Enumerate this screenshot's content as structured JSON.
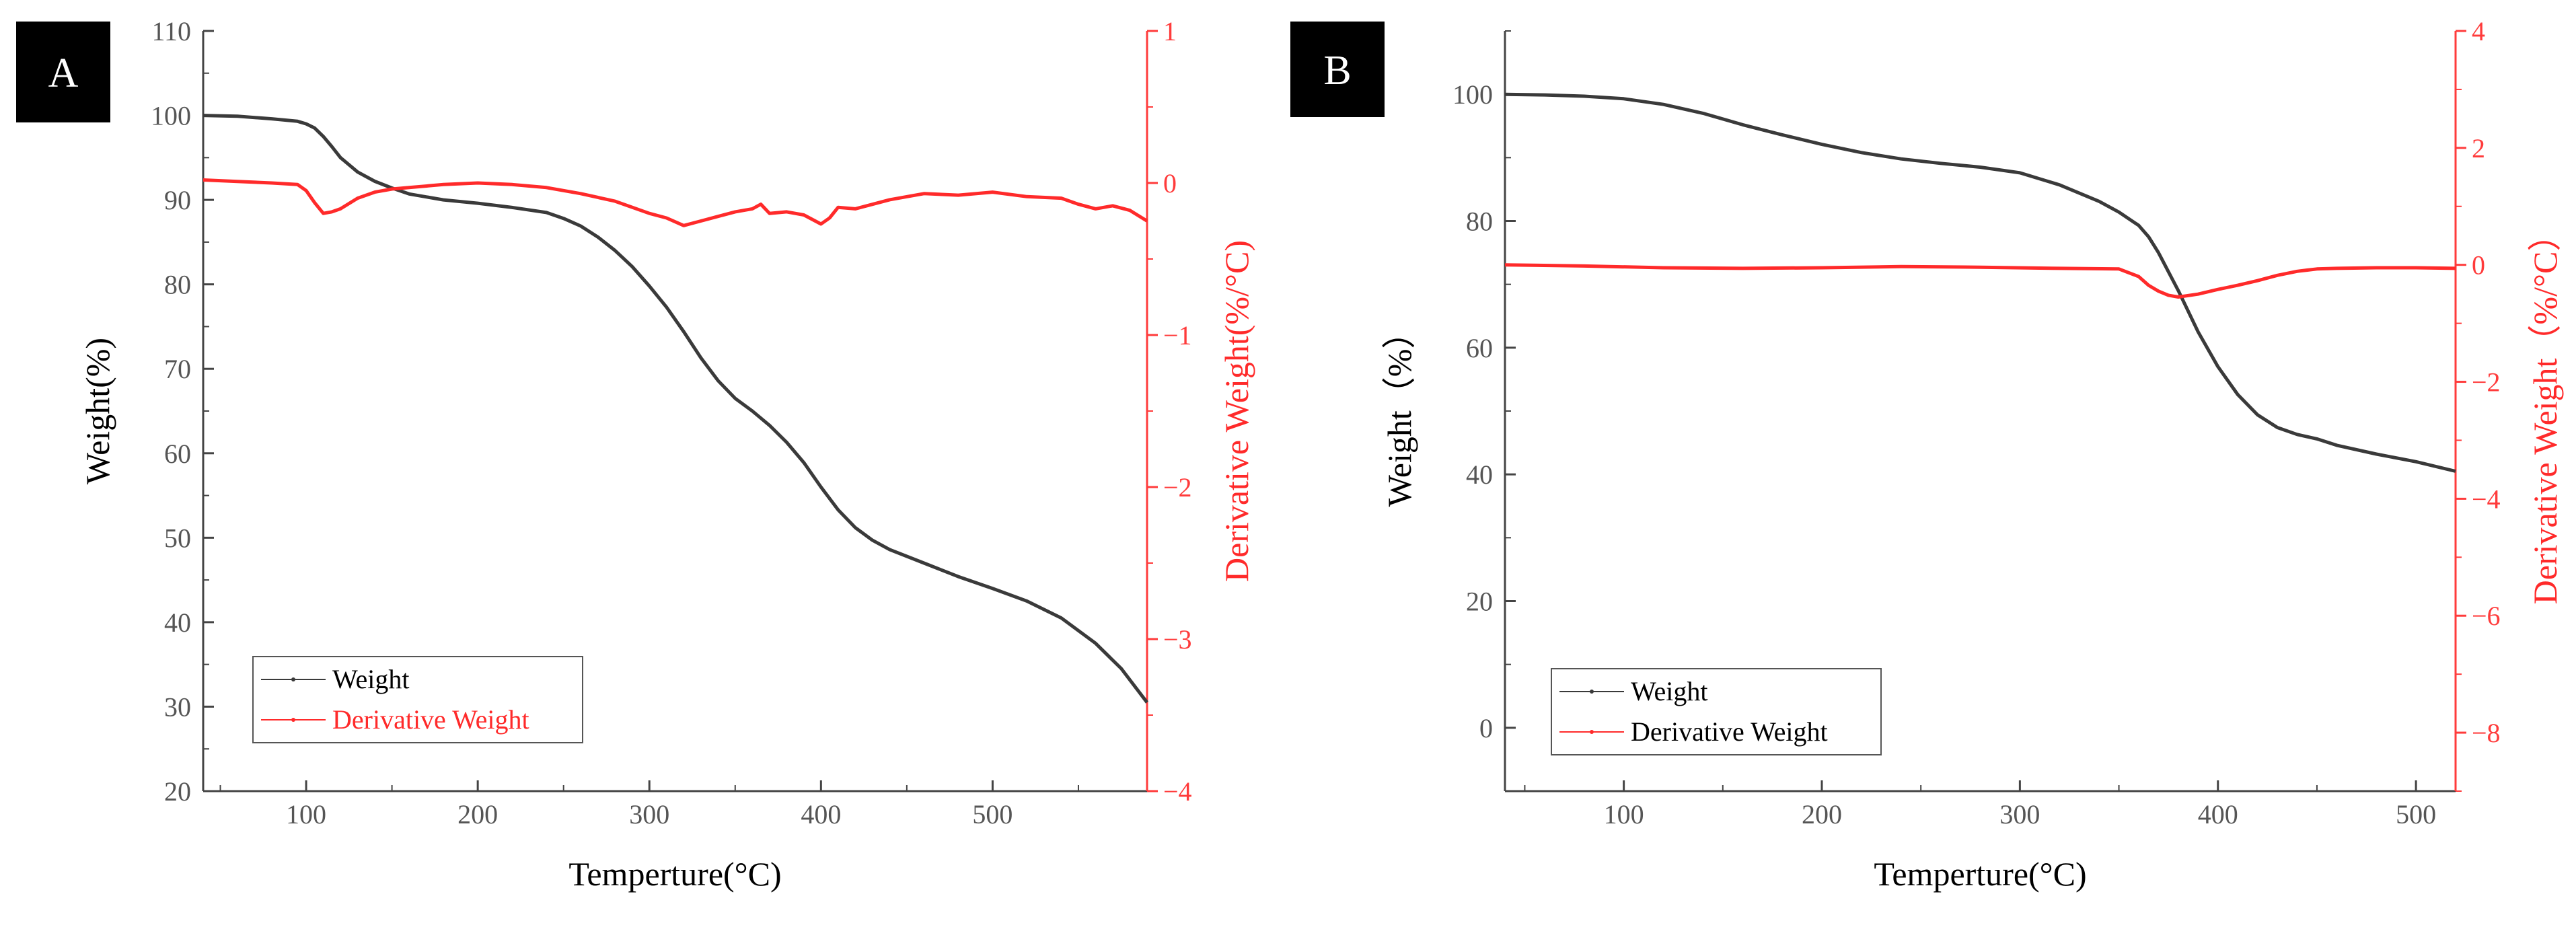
{
  "colors": {
    "weight": "#3a3a3a",
    "derivative": "#ff2a2a",
    "axis_right": "#ff3b3b",
    "label_bg": "#000000"
  },
  "chart_data": [
    {
      "panel": "A",
      "type": "line",
      "xlabel": "Temperture(°C)",
      "ylabel": "Weight(%)",
      "y2label": "Derivative Weight(%/°C)",
      "xlim": [
        40,
        590
      ],
      "ylim": [
        20,
        110
      ],
      "y2lim": [
        -4,
        1
      ],
      "xticks": [
        100,
        200,
        300,
        400,
        500
      ],
      "yticks": [
        20,
        30,
        40,
        50,
        60,
        70,
        80,
        90,
        100,
        110
      ],
      "y2ticks": [
        -4,
        -3,
        -2,
        -1,
        0,
        1
      ],
      "legend": {
        "position": "bottom-left",
        "entries": [
          "Weight",
          "Derivative Weight"
        ]
      },
      "series": [
        {
          "name": "Weight",
          "axis": "left",
          "x": [
            40,
            60,
            80,
            95,
            100,
            105,
            110,
            115,
            120,
            130,
            140,
            150,
            160,
            180,
            200,
            220,
            240,
            250,
            260,
            270,
            280,
            290,
            300,
            310,
            320,
            330,
            340,
            350,
            360,
            370,
            380,
            390,
            400,
            410,
            420,
            430,
            440,
            460,
            480,
            500,
            520,
            540,
            560,
            575,
            590
          ],
          "y": [
            100,
            99.9,
            99.6,
            99.3,
            99,
            98.5,
            97.5,
            96.3,
            95,
            93.3,
            92.2,
            91.4,
            90.7,
            90,
            89.6,
            89.1,
            88.5,
            87.8,
            86.9,
            85.6,
            84,
            82.1,
            79.8,
            77.3,
            74.4,
            71.3,
            68.6,
            66.5,
            65,
            63.3,
            61.3,
            58.9,
            56,
            53.3,
            51.2,
            49.7,
            48.6,
            47,
            45.4,
            44,
            42.5,
            40.5,
            37.5,
            34.5,
            30.5
          ]
        },
        {
          "name": "Derivative Weight",
          "axis": "right",
          "x": [
            40,
            60,
            80,
            95,
            100,
            105,
            110,
            115,
            120,
            130,
            140,
            150,
            160,
            180,
            200,
            220,
            240,
            260,
            280,
            300,
            310,
            320,
            330,
            340,
            350,
            360,
            365,
            370,
            380,
            390,
            400,
            405,
            410,
            420,
            440,
            460,
            480,
            500,
            520,
            540,
            550,
            560,
            570,
            580,
            590
          ],
          "y": [
            0.02,
            0.01,
            0.0,
            -0.01,
            -0.05,
            -0.13,
            -0.2,
            -0.19,
            -0.17,
            -0.1,
            -0.06,
            -0.04,
            -0.03,
            -0.01,
            0.0,
            -0.01,
            -0.03,
            -0.07,
            -0.12,
            -0.2,
            -0.23,
            -0.28,
            -0.25,
            -0.22,
            -0.19,
            -0.17,
            -0.14,
            -0.2,
            -0.19,
            -0.21,
            -0.27,
            -0.23,
            -0.16,
            -0.17,
            -0.11,
            -0.07,
            -0.08,
            -0.06,
            -0.09,
            -0.1,
            -0.14,
            -0.17,
            -0.15,
            -0.18,
            -0.25
          ]
        }
      ]
    },
    {
      "panel": "B",
      "type": "line",
      "xlabel": "Temperture(°C)",
      "ylabel": "Weight（%）",
      "y2label": "Derivative Weight（%/°C）",
      "xlim": [
        40,
        520
      ],
      "ylim": [
        -10,
        110
      ],
      "y2lim": [
        -9,
        4
      ],
      "xticks": [
        100,
        200,
        300,
        400,
        500
      ],
      "yticks": [
        0,
        20,
        40,
        60,
        80,
        100
      ],
      "y2ticks": [
        -8,
        -6,
        -4,
        -2,
        0,
        2,
        4
      ],
      "legend": {
        "position": "bottom-left",
        "entries": [
          "Weight",
          "Derivative Weight"
        ]
      },
      "series": [
        {
          "name": "Weight",
          "axis": "left",
          "x": [
            40,
            60,
            80,
            100,
            120,
            140,
            160,
            180,
            200,
            220,
            240,
            260,
            280,
            300,
            320,
            340,
            350,
            360,
            365,
            370,
            380,
            390,
            400,
            410,
            420,
            430,
            440,
            450,
            460,
            480,
            500,
            520
          ],
          "y": [
            100,
            99.9,
            99.7,
            99.3,
            98.4,
            97,
            95.2,
            93.6,
            92.1,
            90.8,
            89.8,
            89.1,
            88.5,
            87.6,
            85.7,
            83.1,
            81.4,
            79.3,
            77.5,
            75,
            69,
            62.5,
            57,
            52.6,
            49.4,
            47.4,
            46.3,
            45.6,
            44.6,
            43.2,
            42,
            40.5
          ]
        },
        {
          "name": "Derivative Weight",
          "axis": "right",
          "x": [
            40,
            80,
            120,
            160,
            200,
            240,
            280,
            320,
            350,
            360,
            365,
            370,
            375,
            380,
            390,
            400,
            410,
            420,
            430,
            440,
            450,
            460,
            480,
            500,
            520
          ],
          "y": [
            0.0,
            -0.02,
            -0.05,
            -0.06,
            -0.05,
            -0.03,
            -0.04,
            -0.06,
            -0.07,
            -0.2,
            -0.35,
            -0.45,
            -0.52,
            -0.55,
            -0.5,
            -0.42,
            -0.35,
            -0.27,
            -0.18,
            -0.11,
            -0.07,
            -0.06,
            -0.05,
            -0.05,
            -0.06
          ]
        }
      ]
    }
  ]
}
